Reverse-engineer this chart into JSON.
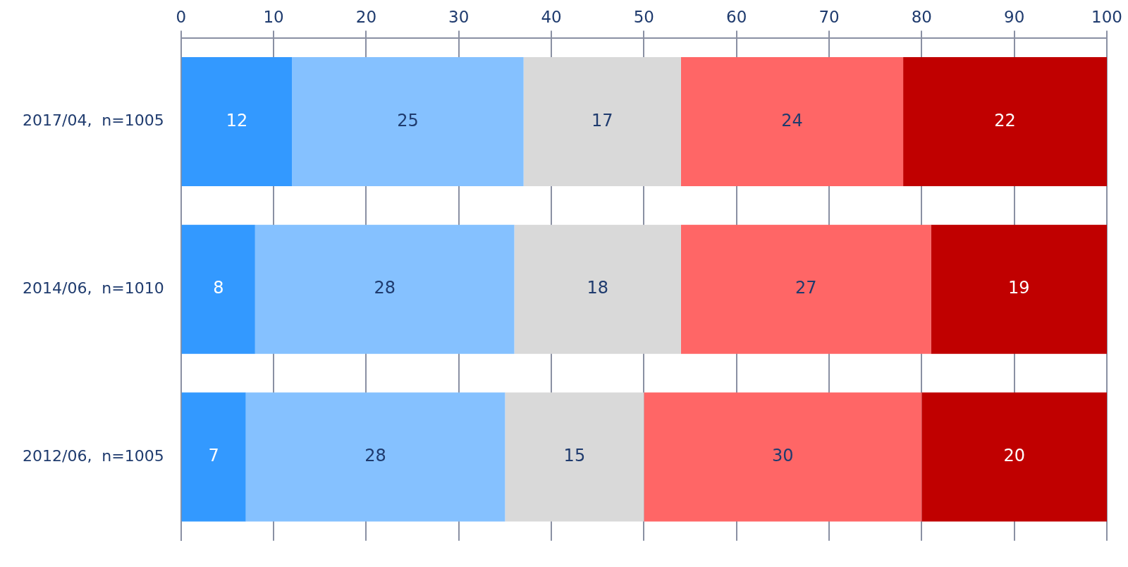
{
  "chart_data": {
    "type": "bar",
    "orientation": "horizontal",
    "stacked": true,
    "categories": [
      "2017/04,  n=1005",
      "2014/06,  n=1010",
      "2012/06,  n=1005"
    ],
    "series": [
      {
        "color": "#3399ff",
        "values": [
          12,
          8,
          7
        ]
      },
      {
        "color": "#85c1ff",
        "values": [
          25,
          28,
          28
        ]
      },
      {
        "color": "#d9d9d9",
        "values": [
          17,
          18,
          15
        ]
      },
      {
        "color": "#ff6666",
        "values": [
          24,
          27,
          30
        ]
      },
      {
        "color": "#c00000",
        "values": [
          22,
          19,
          20
        ]
      }
    ],
    "xlim": [
      0,
      100
    ],
    "xticks": [
      0,
      10,
      20,
      30,
      40,
      50,
      60,
      70,
      80,
      90,
      100
    ],
    "grid": "x",
    "legend": false,
    "data_labels": true
  }
}
